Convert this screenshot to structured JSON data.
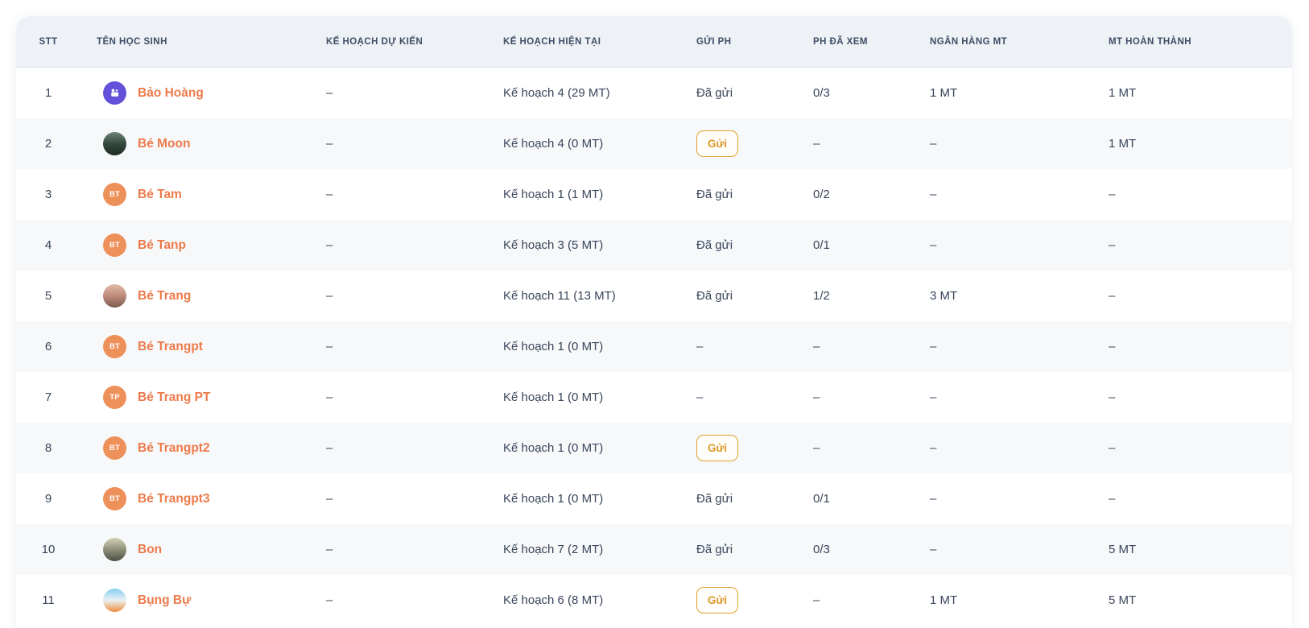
{
  "colors": {
    "accent": "#ED7B4C",
    "button_border": "#DFA12E",
    "button_text": "#DD9728",
    "header_bg": "#EEF1F6",
    "header_text": "#3E4D66",
    "row_alt": "#F7F8FA",
    "text": "#39455A",
    "avatar_initials_bg": "#EE9059",
    "avatar_icon_bg": "#6351D9"
  },
  "table": {
    "columns": [
      {
        "key": "stt",
        "label": "STT"
      },
      {
        "key": "name",
        "label": "TÊN HỌC SINH"
      },
      {
        "key": "plan_expected",
        "label": "KẾ HOẠCH DỰ KIẾN"
      },
      {
        "key": "plan_current",
        "label": "KẾ HOẠCH HIỆN TẠI"
      },
      {
        "key": "send_ph",
        "label": "GỬI PH"
      },
      {
        "key": "ph_viewed",
        "label": "PH ĐÃ XEM"
      },
      {
        "key": "mt_bank",
        "label": "NGÂN HÀNG MT"
      },
      {
        "key": "mt_done",
        "label": "MT HOÀN THÀNH"
      }
    ],
    "rows": [
      {
        "stt": "1",
        "name": "Bảo Hoàng",
        "avatar": {
          "type": "icon",
          "bg": "#6351D9"
        },
        "plan_expected": "–",
        "plan_current": "Kế hoạch 4 (29 MT)",
        "send_ph": {
          "kind": "text",
          "label": "Đã gửi"
        },
        "ph_viewed": "0/3",
        "mt_bank": "1 MT",
        "mt_done": "1 MT"
      },
      {
        "stt": "2",
        "name": "Bé Moon",
        "avatar": {
          "type": "photo",
          "colors": [
            "#6d8376",
            "#34493e",
            "#1c2a22"
          ]
        },
        "plan_expected": "–",
        "plan_current": "Kế hoạch 4 (0 MT)",
        "send_ph": {
          "kind": "button",
          "label": "Gửi"
        },
        "ph_viewed": "–",
        "mt_bank": "–",
        "mt_done": "1 MT"
      },
      {
        "stt": "3",
        "name": "Bé Tam",
        "avatar": {
          "type": "initials",
          "text": "BT",
          "bg": "#EE9059"
        },
        "plan_expected": "–",
        "plan_current": "Kế hoạch 1 (1 MT)",
        "send_ph": {
          "kind": "text",
          "label": "Đã gửi"
        },
        "ph_viewed": "0/2",
        "mt_bank": "–",
        "mt_done": "–"
      },
      {
        "stt": "4",
        "name": "Bé Tanp",
        "avatar": {
          "type": "initials",
          "text": "BT",
          "bg": "#EE9059"
        },
        "plan_expected": "–",
        "plan_current": "Kế hoạch 3 (5 MT)",
        "send_ph": {
          "kind": "text",
          "label": "Đã gửi"
        },
        "ph_viewed": "0/1",
        "mt_bank": "–",
        "mt_done": "–"
      },
      {
        "stt": "5",
        "name": "Bé Trang",
        "avatar": {
          "type": "photo",
          "colors": [
            "#e3bcab",
            "#bd8a79",
            "#7c5a50"
          ]
        },
        "plan_expected": "–",
        "plan_current": "Kế hoạch 11 (13 MT)",
        "send_ph": {
          "kind": "text",
          "label": "Đã gửi"
        },
        "ph_viewed": "1/2",
        "mt_bank": "3 MT",
        "mt_done": "–"
      },
      {
        "stt": "6",
        "name": "Bé Trangpt",
        "avatar": {
          "type": "initials",
          "text": "BT",
          "bg": "#EE9059"
        },
        "plan_expected": "–",
        "plan_current": "Kế hoạch 1 (0 MT)",
        "send_ph": {
          "kind": "text",
          "label": "–"
        },
        "ph_viewed": "–",
        "mt_bank": "–",
        "mt_done": "–"
      },
      {
        "stt": "7",
        "name": "Bé Trang PT",
        "avatar": {
          "type": "initials",
          "text": "TP",
          "bg": "#EE9059"
        },
        "plan_expected": "–",
        "plan_current": "Kế hoạch 1 (0 MT)",
        "send_ph": {
          "kind": "text",
          "label": "–"
        },
        "ph_viewed": "–",
        "mt_bank": "–",
        "mt_done": "–"
      },
      {
        "stt": "8",
        "name": "Bé Trangpt2",
        "avatar": {
          "type": "initials",
          "text": "BT",
          "bg": "#EE9059"
        },
        "plan_expected": "–",
        "plan_current": "Kế hoạch 1 (0 MT)",
        "send_ph": {
          "kind": "button",
          "label": "Gửi"
        },
        "ph_viewed": "–",
        "mt_bank": "–",
        "mt_done": "–"
      },
      {
        "stt": "9",
        "name": "Bé Trangpt3",
        "avatar": {
          "type": "initials",
          "text": "BT",
          "bg": "#EE9059"
        },
        "plan_expected": "–",
        "plan_current": "Kế hoạch 1 (0 MT)",
        "send_ph": {
          "kind": "text",
          "label": "Đã gửi"
        },
        "ph_viewed": "0/1",
        "mt_bank": "–",
        "mt_done": "–"
      },
      {
        "stt": "10",
        "name": "Bon",
        "avatar": {
          "type": "photo",
          "colors": [
            "#d6d1ba",
            "#8e9078",
            "#4b5044"
          ]
        },
        "plan_expected": "–",
        "plan_current": "Kế hoạch 7 (2 MT)",
        "send_ph": {
          "kind": "text",
          "label": "Đã gửi"
        },
        "ph_viewed": "0/3",
        "mt_bank": "–",
        "mt_done": "5 MT"
      },
      {
        "stt": "11",
        "name": "Bụng Bự",
        "avatar": {
          "type": "photo",
          "colors": [
            "#86cdef",
            "#e9f2f4",
            "#ef8c3b"
          ]
        },
        "plan_expected": "–",
        "plan_current": "Kế hoạch 6 (8 MT)",
        "send_ph": {
          "kind": "button",
          "label": "Gửi"
        },
        "ph_viewed": "–",
        "mt_bank": "1 MT",
        "mt_done": "5 MT"
      }
    ]
  }
}
